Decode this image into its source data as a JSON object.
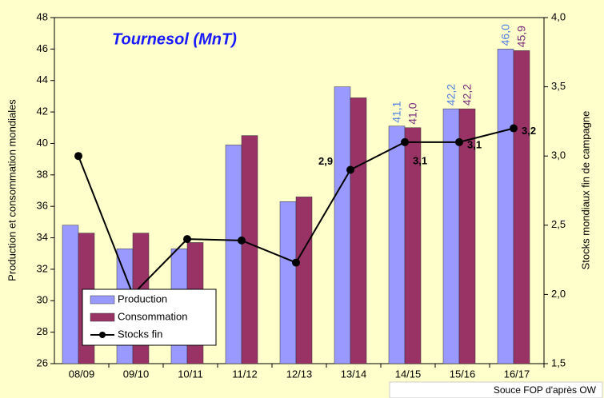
{
  "chart_data": {
    "type": "bar",
    "title": "Tournesol (MnT)",
    "ylabel": "Production et consommation mondiales",
    "y2label": "Stocks mondiaux fin de campagne",
    "source": "Souce FOP d'après OW",
    "categories": [
      "08/09",
      "09/10",
      "10/11",
      "11/12",
      "12/13",
      "13/14",
      "14/15",
      "15/16",
      "16/17"
    ],
    "series": [
      {
        "name": "Production",
        "type": "bar",
        "color": "#9999ff",
        "label_color": "#4f7fe0",
        "values": [
          34.8,
          33.3,
          33.3,
          39.9,
          36.3,
          43.6,
          41.1,
          42.2,
          46.0
        ],
        "value_labels": [
          null,
          null,
          null,
          null,
          null,
          null,
          "41,1",
          "42,2",
          "46,0"
        ]
      },
      {
        "name": "Consommation",
        "type": "bar",
        "color": "#993366",
        "label_color": "#7a2a7a",
        "values": [
          34.3,
          34.3,
          33.7,
          40.5,
          36.6,
          42.9,
          41.0,
          42.2,
          45.9
        ],
        "value_labels": [
          null,
          null,
          null,
          null,
          null,
          null,
          "41,0",
          "42,2",
          "45,9"
        ]
      },
      {
        "name": "Stocks fin",
        "type": "line",
        "axis": "y2",
        "color": "#000000",
        "label_color": "#000000",
        "values": [
          3.0,
          2.0,
          2.4,
          2.39,
          2.23,
          2.9,
          3.1,
          3.1,
          3.2
        ],
        "value_labels": [
          null,
          null,
          null,
          null,
          null,
          "2,9",
          "3,1",
          "3,1",
          "3,2"
        ]
      }
    ],
    "ylim": [
      26,
      48
    ],
    "yticks": [
      26,
      28,
      30,
      32,
      34,
      36,
      38,
      40,
      42,
      44,
      46,
      48
    ],
    "y2lim": [
      1.5,
      4.0
    ],
    "y2ticks": [
      {
        "value": 1.5,
        "label": "1,5"
      },
      {
        "value": 2.0,
        "label": "2,0"
      },
      {
        "value": 2.5,
        "label": "2,5"
      },
      {
        "value": 3.0,
        "label": "3,0"
      },
      {
        "value": 3.5,
        "label": "3,5"
      },
      {
        "value": 4.0,
        "label": "4,0"
      }
    ],
    "grid": false,
    "legend": "lower left"
  }
}
